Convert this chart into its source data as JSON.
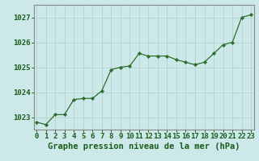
{
  "x": [
    0,
    1,
    2,
    3,
    4,
    5,
    6,
    7,
    8,
    9,
    10,
    11,
    12,
    13,
    14,
    15,
    16,
    17,
    18,
    19,
    20,
    21,
    22,
    23
  ],
  "y": [
    1022.8,
    1022.7,
    1023.1,
    1023.1,
    1023.7,
    1023.75,
    1023.75,
    1024.05,
    1024.9,
    1025.0,
    1025.05,
    1025.55,
    1025.45,
    1025.45,
    1025.45,
    1025.3,
    1025.2,
    1025.1,
    1025.2,
    1025.55,
    1025.9,
    1026.0,
    1027.0,
    1027.1
  ],
  "xlim": [
    -0.3,
    23.3
  ],
  "ylim": [
    1022.5,
    1027.5
  ],
  "yticks": [
    1023,
    1024,
    1025,
    1026,
    1027
  ],
  "xticks": [
    0,
    1,
    2,
    3,
    4,
    5,
    6,
    7,
    8,
    9,
    10,
    11,
    12,
    13,
    14,
    15,
    16,
    17,
    18,
    19,
    20,
    21,
    22,
    23
  ],
  "xlabel": "Graphe pression niveau de la mer (hPa)",
  "line_color": "#2d6e2d",
  "marker_color": "#2d6e2d",
  "bg_color": "#cce8e8",
  "grid_color": "#b8d4d4",
  "axis_label_color": "#1a5c1a",
  "tick_color": "#1a5c1a",
  "border_color": "#888888",
  "xlabel_fontsize": 7.5,
  "tick_fontsize": 6.5
}
